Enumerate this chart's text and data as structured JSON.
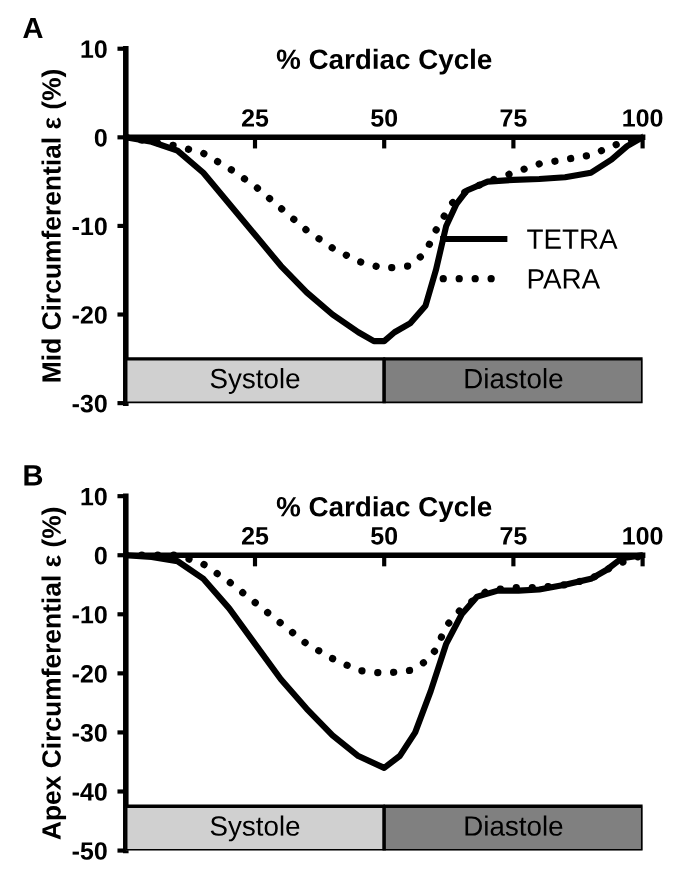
{
  "chart_data": [
    {
      "type": "line",
      "xlabel": "% Cardiac Cycle",
      "ylabel": "Mid Circumferential ε (%)",
      "annotations": [
        "A"
      ],
      "xlim": [
        0,
        100
      ],
      "xticks": [
        {
          "value": 0,
          "label": null
        },
        25,
        50,
        75,
        100
      ],
      "ylim": [
        -30,
        10
      ],
      "yticks": [
        -30,
        -20,
        -10,
        0,
        10
      ],
      "grid": false,
      "legend": "right",
      "bands": [
        {
          "axis": "x",
          "from": 0,
          "to": 50,
          "label": "Systole",
          "color": "#d0d0d0"
        },
        {
          "axis": "x",
          "from": 50,
          "to": 100,
          "label": "Diastole",
          "color": "#808080"
        }
      ],
      "series": [
        {
          "name": "TETRA",
          "color": "#000000",
          "line_style": "solid",
          "x": [
            0,
            5,
            10,
            15,
            20,
            25,
            30,
            35,
            40,
            45,
            48,
            50,
            52,
            55,
            58,
            60,
            62,
            64,
            66,
            70,
            75,
            80,
            85,
            90,
            94,
            97,
            100
          ],
          "values": [
            0,
            -0.5,
            -1.5,
            -4,
            -7.5,
            -11,
            -14.5,
            -17.5,
            -20,
            -22,
            -23,
            -23,
            -22,
            -21,
            -19,
            -15,
            -10,
            -7.5,
            -6,
            -5,
            -4.8,
            -4.7,
            -4.5,
            -4,
            -2.5,
            -1,
            0
          ]
        },
        {
          "name": "PARA",
          "color": "#000000",
          "line_style": "dotted",
          "x": [
            0,
            10,
            15,
            20,
            25,
            30,
            35,
            40,
            45,
            50,
            55,
            58,
            60,
            63,
            66,
            70,
            75,
            80,
            85,
            90,
            95,
            100
          ],
          "values": [
            0,
            -1,
            -1.8,
            -3.5,
            -5.5,
            -8,
            -10.5,
            -12.5,
            -14,
            -14.8,
            -14.5,
            -13,
            -10.5,
            -7.5,
            -6,
            -5,
            -4,
            -3,
            -2.5,
            -2,
            -0.8,
            0
          ]
        }
      ]
    },
    {
      "type": "line",
      "xlabel": "% Cardiac Cycle",
      "ylabel": "Apex Circumferential ε (%)",
      "annotations": [
        "B"
      ],
      "xlim": [
        0,
        100
      ],
      "xticks": [
        {
          "value": 0,
          "label": null
        },
        25,
        50,
        75,
        100
      ],
      "ylim": [
        -50,
        10
      ],
      "yticks": [
        -50,
        -40,
        -30,
        -20,
        -10,
        0,
        10
      ],
      "grid": false,
      "bands": [
        {
          "axis": "x",
          "from": 0,
          "to": 50,
          "label": "Systole",
          "color": "#d0d0d0"
        },
        {
          "axis": "x",
          "from": 50,
          "to": 100,
          "label": "Diastole",
          "color": "#808080"
        }
      ],
      "series": [
        {
          "color": "#000000",
          "line_style": "solid",
          "x": [
            0,
            5,
            10,
            15,
            20,
            25,
            30,
            35,
            40,
            45,
            50,
            53,
            56,
            59,
            62,
            65,
            68,
            72,
            76,
            80,
            85,
            90,
            93,
            96,
            100
          ],
          "values": [
            0,
            -0.3,
            -1,
            -4,
            -9,
            -15,
            -21,
            -26,
            -30.5,
            -34,
            -36,
            -34,
            -30,
            -23,
            -15,
            -10,
            -7,
            -6,
            -6,
            -5.8,
            -5,
            -4,
            -2.5,
            -0.5,
            0
          ]
        },
        {
          "color": "#000000",
          "line_style": "dotted",
          "x": [
            0,
            10,
            15,
            20,
            25,
            30,
            35,
            40,
            45,
            50,
            55,
            58,
            60,
            62,
            65,
            70,
            75,
            80,
            85,
            90,
            95,
            100
          ],
          "values": [
            0,
            0,
            -1.5,
            -4.5,
            -8,
            -11.5,
            -15,
            -17.5,
            -19.5,
            -20,
            -19.5,
            -18,
            -16,
            -12,
            -9,
            -6,
            -5.5,
            -5.5,
            -5,
            -4,
            -1.5,
            0
          ]
        }
      ]
    }
  ]
}
